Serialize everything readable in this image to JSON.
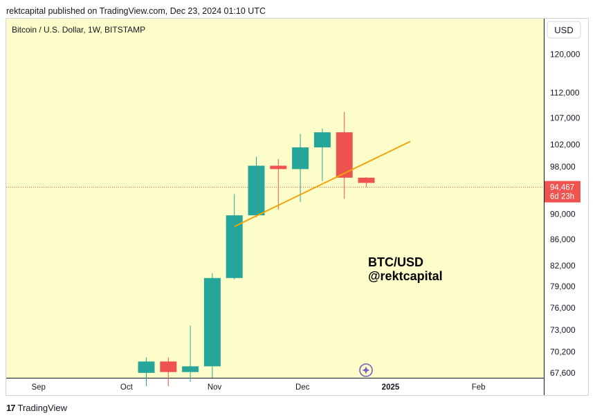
{
  "header": {
    "published_text": "rektcapital published on TradingView.com, Dec 23, 2024 01:10 UTC"
  },
  "footer": {
    "logo_mark": "17",
    "brand": "TradingView"
  },
  "colors": {
    "background": "#fdfdc9",
    "up": "#26a69a",
    "down": "#ef5350",
    "trendline": "#f0a30a",
    "marker": "#7e57c2"
  },
  "chart_data": {
    "type": "candlestick",
    "title": "Bitcoin / U.S. Dollar, 1W, BITSTAMP",
    "currency": "USD",
    "scale": "log",
    "ylim": [
      67000,
      128000
    ],
    "y_ticks": [
      {
        "value": 120000,
        "label": "120,000"
      },
      {
        "value": 112000,
        "label": "112,000"
      },
      {
        "value": 107000,
        "label": "107,000"
      },
      {
        "value": 102000,
        "label": "102,000"
      },
      {
        "value": 98000,
        "label": "98,000"
      },
      {
        "value": 90000,
        "label": "90,000"
      },
      {
        "value": 86000,
        "label": "86,000"
      },
      {
        "value": 82000,
        "label": "82,000"
      },
      {
        "value": 79000,
        "label": "79,000"
      },
      {
        "value": 76000,
        "label": "76,000"
      },
      {
        "value": 73000,
        "label": "73,000"
      },
      {
        "value": 70200,
        "label": "70,200"
      },
      {
        "value": 67600,
        "label": "67,600"
      }
    ],
    "x_ticks": [
      {
        "label": "Sep",
        "week": -4.9
      },
      {
        "label": "Oct",
        "week": -0.9
      },
      {
        "label": "Nov",
        "week": 3.1
      },
      {
        "label": "Dec",
        "week": 7.1
      },
      {
        "label": "2025",
        "week": 11.1,
        "bold": true
      },
      {
        "label": "Feb",
        "week": 15.1
      }
    ],
    "candles": [
      {
        "date": "2024-10-07",
        "open": 67600,
        "high": 69500,
        "low": 66000,
        "close": 69000
      },
      {
        "date": "2024-10-14",
        "open": 69000,
        "high": 69500,
        "low": 66000,
        "close": 67700
      },
      {
        "date": "2024-10-21",
        "open": 67700,
        "high": 73600,
        "low": 66500,
        "close": 68400
      },
      {
        "date": "2024-10-28",
        "open": 68400,
        "high": 80900,
        "low": 67000,
        "close": 80200
      },
      {
        "date": "2024-11-04",
        "open": 80200,
        "high": 93300,
        "low": 80000,
        "close": 89800
      },
      {
        "date": "2024-11-11",
        "open": 89800,
        "high": 99800,
        "low": 89500,
        "close": 98200
      },
      {
        "date": "2024-11-18",
        "open": 98200,
        "high": 99400,
        "low": 90700,
        "close": 97600
      },
      {
        "date": "2024-11-25",
        "open": 97600,
        "high": 104000,
        "low": 92000,
        "close": 101500
      },
      {
        "date": "2024-12-02",
        "open": 101500,
        "high": 105000,
        "low": 95500,
        "close": 104300
      },
      {
        "date": "2024-12-09",
        "open": 104300,
        "high": 108200,
        "low": 92500,
        "close": 96100
      },
      {
        "date": "2024-12-16",
        "open": 96100,
        "high": 96200,
        "low": 94500,
        "close": 95200
      }
    ],
    "trendline": {
      "start": {
        "date": "2024-11-04",
        "price": 88000
      },
      "end": {
        "date": "2024-12-30",
        "price": 102600
      }
    },
    "last_price": {
      "label": "94,467",
      "countdown": "6d 23h",
      "value": 94467
    },
    "annotation": {
      "line1": "BTC/USD",
      "line2": "@rektcapital"
    },
    "marker_icon": "sparkle-circle-icon"
  }
}
